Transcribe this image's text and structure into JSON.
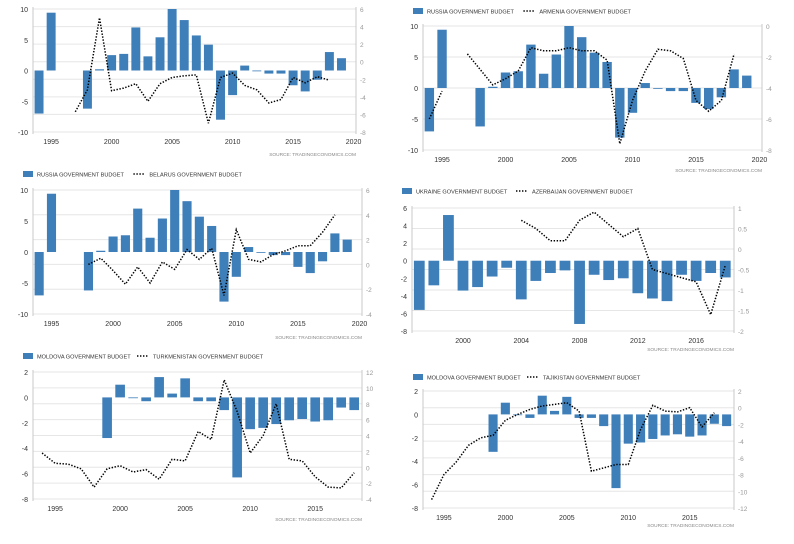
{
  "chart_data": [
    {
      "type": "bar",
      "source": "SOURCE:  TRADINGECONOMICS.COM",
      "x": [
        1994,
        1995,
        1996,
        1997,
        1998,
        1999,
        2000,
        2001,
        2002,
        2003,
        2004,
        2005,
        2006,
        2007,
        2008,
        2009,
        2010,
        2011,
        2012,
        2013,
        2014,
        2015,
        2016,
        2017,
        2018,
        2019
      ],
      "series": [
        {
          "name": "",
          "kind": "bar",
          "axis": "left",
          "color": "#3f7fb9",
          "values": [
            -7,
            9.4,
            null,
            null,
            -6.2,
            0.2,
            2.5,
            2.7,
            7,
            2.3,
            5.4,
            10,
            8.2,
            5.7,
            4.2,
            -8,
            -4,
            0.8,
            0,
            -0.5,
            -0.5,
            -2.4,
            -3.4,
            -1.5,
            3,
            2
          ]
        },
        {
          "name": "",
          "kind": "line",
          "axis": "right",
          "color": "#000000",
          "values": [
            null,
            null,
            null,
            -5.7,
            -3.2,
            5,
            -3.3,
            -3,
            -2.5,
            -4.5,
            -2.5,
            -1.8,
            -1.6,
            -1.5,
            -7,
            -1.8,
            -1.3,
            -2.7,
            -3.2,
            -4.7,
            -4.3,
            -1.8,
            -2.4,
            -1.7,
            -2.1,
            null
          ]
        }
      ],
      "ylim_left": [
        -10,
        10
      ],
      "yticks_left": [
        -10,
        -5,
        0,
        5,
        10
      ],
      "ylim_right": [
        -8,
        6
      ],
      "yticks_right": [
        -8,
        -6,
        -4,
        -2,
        0,
        2,
        4,
        6
      ],
      "xticks": [
        1995,
        2000,
        2005,
        2010,
        2015,
        2020
      ],
      "grid": true
    },
    {
      "type": "bar",
      "source": "SOURCE:  TRADINGECONOMICS.COM",
      "x": [
        1994,
        1995,
        1996,
        1997,
        1998,
        1999,
        2000,
        2001,
        2002,
        2003,
        2004,
        2005,
        2006,
        2007,
        2008,
        2009,
        2010,
        2011,
        2012,
        2013,
        2014,
        2015,
        2016,
        2017,
        2018,
        2019
      ],
      "series": [
        {
          "name": "RUSSIA GOVERNMENT BUDGET",
          "kind": "bar",
          "axis": "left",
          "color": "#3f7fb9",
          "values": [
            -7,
            9.4,
            null,
            null,
            -6.2,
            0.2,
            2.5,
            2.7,
            7,
            2.3,
            5.4,
            10,
            8.2,
            5.7,
            4.2,
            -8,
            -4,
            0.8,
            0,
            -0.5,
            -0.5,
            -2.4,
            -3.4,
            -1.5,
            3,
            2
          ]
        },
        {
          "name": "ARMENIA GOVERNMENT BUDGET",
          "kind": "line",
          "axis": "right",
          "color": "#000000",
          "values": [
            -6,
            -4.2,
            null,
            -1.8,
            -2.8,
            -3.8,
            -3.4,
            -2.9,
            -1.4,
            -1.6,
            -1.6,
            -1.4,
            -1.6,
            -1.6,
            -2.2,
            -7.6,
            -4.8,
            -2.9,
            -1.5,
            -1.6,
            -2.1,
            -4.8,
            -5.5,
            -4.8,
            -1.8,
            null
          ]
        }
      ],
      "ylim_left": [
        -10,
        10
      ],
      "yticks_left": [
        -10,
        -5,
        0,
        5,
        10
      ],
      "ylim_right": [
        -8,
        0
      ],
      "yticks_right": [
        -8,
        -6,
        -4,
        -2,
        0
      ],
      "xticks": [
        1995,
        2000,
        2005,
        2010,
        2015,
        2020
      ],
      "grid": true
    },
    {
      "type": "bar",
      "source": "SOURCE:  TRADINGECONOMICS.COM",
      "x": [
        1994,
        1995,
        1996,
        1997,
        1998,
        1999,
        2000,
        2001,
        2002,
        2003,
        2004,
        2005,
        2006,
        2007,
        2008,
        2009,
        2010,
        2011,
        2012,
        2013,
        2014,
        2015,
        2016,
        2017,
        2018,
        2019
      ],
      "series": [
        {
          "name": "RUSSIA GOVERNMENT BUDGET",
          "kind": "bar",
          "axis": "left",
          "color": "#3f7fb9",
          "values": [
            -7,
            9.4,
            null,
            null,
            -6.2,
            0.2,
            2.5,
            2.7,
            7,
            2.3,
            5.4,
            10,
            8.2,
            5.7,
            4.2,
            -8,
            -4,
            0.8,
            0,
            -0.5,
            -0.5,
            -2.4,
            -3.4,
            -1.5,
            3,
            2
          ]
        },
        {
          "name": "BELARUS GOVERNMENT BUDGET",
          "kind": "line",
          "axis": "right",
          "color": "#000000",
          "values": [
            null,
            null,
            null,
            null,
            0,
            0.5,
            -0.5,
            -1.6,
            -0.2,
            -1.5,
            0.2,
            -0.4,
            1.2,
            0.4,
            1.3,
            -2.5,
            2.8,
            0.4,
            0.2,
            0.8,
            1.1,
            1.5,
            1.5,
            2.6,
            4,
            null
          ]
        }
      ],
      "ylim_left": [
        -10,
        10
      ],
      "yticks_left": [
        -10,
        -5,
        0,
        5,
        10
      ],
      "ylim_right": [
        -4,
        6
      ],
      "yticks_right": [
        -4,
        -2,
        0,
        2,
        4,
        6
      ],
      "xticks": [
        1995,
        2000,
        2005,
        2010,
        2015,
        2020
      ],
      "grid": true
    },
    {
      "type": "bar",
      "source": "SOURCE:  TRADINGECONOMICS.COM",
      "x": [
        1997,
        1998,
        1999,
        2000,
        2001,
        2002,
        2003,
        2004,
        2005,
        2006,
        2007,
        2008,
        2009,
        2010,
        2011,
        2012,
        2013,
        2014,
        2015,
        2016,
        2017,
        2018
      ],
      "series": [
        {
          "name": "UKRAINE GOVERNMENT BUDGET",
          "kind": "bar",
          "axis": "left",
          "color": "#3f7fb9",
          "values": [
            -5.6,
            -2.8,
            5.2,
            -3.4,
            -3,
            -1.8,
            -0.8,
            -4.4,
            -2.3,
            -1.4,
            -1.1,
            -7.2,
            -1.6,
            -2.2,
            -2,
            -3.7,
            -4.3,
            -4.6,
            -1.6,
            -2.3,
            -1.4,
            -1.9
          ]
        },
        {
          "name": "AZERBAIJAN GOVERNMENT BUDGET",
          "kind": "line",
          "axis": "right",
          "color": "#000000",
          "values": [
            null,
            null,
            null,
            null,
            null,
            null,
            null,
            0.7,
            0.5,
            0.2,
            0.2,
            0.7,
            0.9,
            0.6,
            0.3,
            0.5,
            -0.5,
            -0.6,
            -0.7,
            -0.8,
            -1.6,
            -0.4
          ]
        }
      ],
      "ylim_left": [
        -8,
        6
      ],
      "yticks_left": [
        -8,
        -6,
        -4,
        -2,
        0,
        2,
        4,
        6
      ],
      "ylim_right": [
        -2,
        1
      ],
      "yticks_right": [
        -2,
        -1.5,
        -1,
        -0.5,
        0,
        0.5,
        1
      ],
      "xticks": [
        2000,
        2004,
        2008,
        2012,
        2016
      ],
      "grid": true
    },
    {
      "type": "bar",
      "source": "SOURCE:  TRADINGECONOMICS.COM",
      "x": [
        1994,
        1995,
        1996,
        1997,
        1998,
        1999,
        2000,
        2001,
        2002,
        2003,
        2004,
        2005,
        2006,
        2007,
        2008,
        2009,
        2010,
        2011,
        2012,
        2013,
        2014,
        2015,
        2016,
        2017,
        2018
      ],
      "series": [
        {
          "name": "MOLDOVA GOVERNMENT BUDGET",
          "kind": "bar",
          "axis": "left",
          "color": "#3f7fb9",
          "values": [
            null,
            null,
            null,
            null,
            null,
            -3.2,
            1,
            0,
            -0.3,
            1.6,
            0.3,
            1.5,
            -0.3,
            -0.3,
            -1,
            -6.3,
            -2.5,
            -2.4,
            -2.1,
            -1.8,
            -1.7,
            -1.9,
            -1.8,
            -0.8,
            -1
          ]
        },
        {
          "name": "TURKMENISTAN GOVERNMENT BUDGET",
          "kind": "line",
          "axis": "right",
          "color": "#000000",
          "values": [
            1.8,
            0.5,
            0.4,
            -0.2,
            -2.5,
            -0.2,
            0.2,
            -0.6,
            -0.3,
            -1.5,
            1,
            0.8,
            4.5,
            3.5,
            11,
            7,
            1.8,
            4,
            8,
            1,
            0.8,
            -1.2,
            -2.5,
            -2.6,
            -0.7
          ]
        }
      ],
      "ylim_left": [
        -8,
        2
      ],
      "yticks_left": [
        -8,
        -6,
        -4,
        -2,
        0,
        2
      ],
      "ylim_right": [
        -4,
        12
      ],
      "yticks_right": [
        -4,
        -2,
        0,
        2,
        4,
        6,
        8,
        10,
        12
      ],
      "xticks": [
        1995,
        2000,
        2005,
        2010,
        2015
      ],
      "grid": true
    },
    {
      "type": "bar",
      "source": "SOURCE:  TRADINGECONOMICS.COM",
      "x": [
        1994,
        1995,
        1996,
        1997,
        1998,
        1999,
        2000,
        2001,
        2002,
        2003,
        2004,
        2005,
        2006,
        2007,
        2008,
        2009,
        2010,
        2011,
        2012,
        2013,
        2014,
        2015,
        2016,
        2017,
        2018
      ],
      "series": [
        {
          "name": "MOLDOVA GOVERNMENT BUDGET",
          "kind": "bar",
          "axis": "left",
          "color": "#3f7fb9",
          "values": [
            null,
            null,
            null,
            null,
            null,
            -3.2,
            1,
            0,
            -0.3,
            1.6,
            0.3,
            1.5,
            -0.3,
            -0.3,
            -1,
            -6.3,
            -2.5,
            -2.4,
            -2.1,
            -1.8,
            -1.7,
            -1.9,
            -1.8,
            -0.8,
            -1
          ]
        },
        {
          "name": "TAJIKISTAN GOVERNMENT BUDGET",
          "kind": "line",
          "axis": "right",
          "color": "#000000",
          "values": [
            -11,
            -8,
            -6.5,
            -4.5,
            -3.6,
            -3.3,
            -1.5,
            -0.8,
            -0.2,
            0.2,
            0.4,
            0.6,
            -0.4,
            -7.6,
            -7.2,
            -6.8,
            -6.8,
            -2.6,
            0.3,
            -0.4,
            -0.5,
            0,
            -2.3,
            -0.6,
            null
          ]
        }
      ],
      "ylim_left": [
        -8,
        2
      ],
      "yticks_left": [
        -8,
        -6,
        -4,
        -2,
        0,
        2
      ],
      "ylim_right": [
        -12,
        2
      ],
      "yticks_right": [
        -12,
        -10,
        -8,
        -6,
        -4,
        -2,
        0,
        2
      ],
      "xticks": [
        1995,
        2000,
        2005,
        2010,
        2015
      ],
      "grid": true
    }
  ]
}
